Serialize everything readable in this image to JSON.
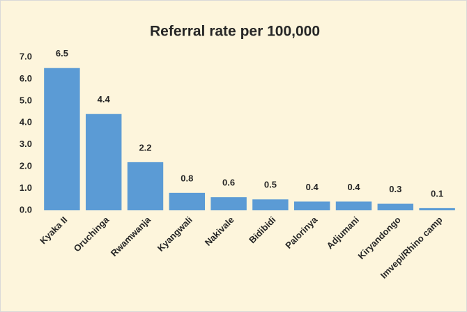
{
  "chart_data": {
    "type": "bar",
    "title": "Referral rate per 100,000",
    "categories": [
      "Kyaka II",
      "Oruchinga",
      "Rwamwanja",
      "Kyangwali",
      "Nakivale",
      "Bidibidi",
      "Palorinya",
      "Adjumani",
      "Kiryandongo",
      "Imvepi/Rhino camp"
    ],
    "values": [
      6.5,
      4.4,
      2.2,
      0.8,
      0.6,
      0.5,
      0.4,
      0.4,
      0.3,
      0.1
    ],
    "color": "#5b9bd5",
    "ylim": [
      0,
      7
    ],
    "yticks": [
      {
        "value": 0,
        "label": "0.0"
      },
      {
        "value": 1,
        "label": "1.0"
      },
      {
        "value": 2,
        "label": "2.0"
      },
      {
        "value": 3,
        "label": "3.0"
      },
      {
        "value": 4,
        "label": "4.0"
      },
      {
        "value": 5,
        "label": "5.0"
      },
      {
        "value": 6,
        "label": "6.0"
      },
      {
        "value": 7,
        "label": "7.0"
      }
    ],
    "grid": false
  }
}
